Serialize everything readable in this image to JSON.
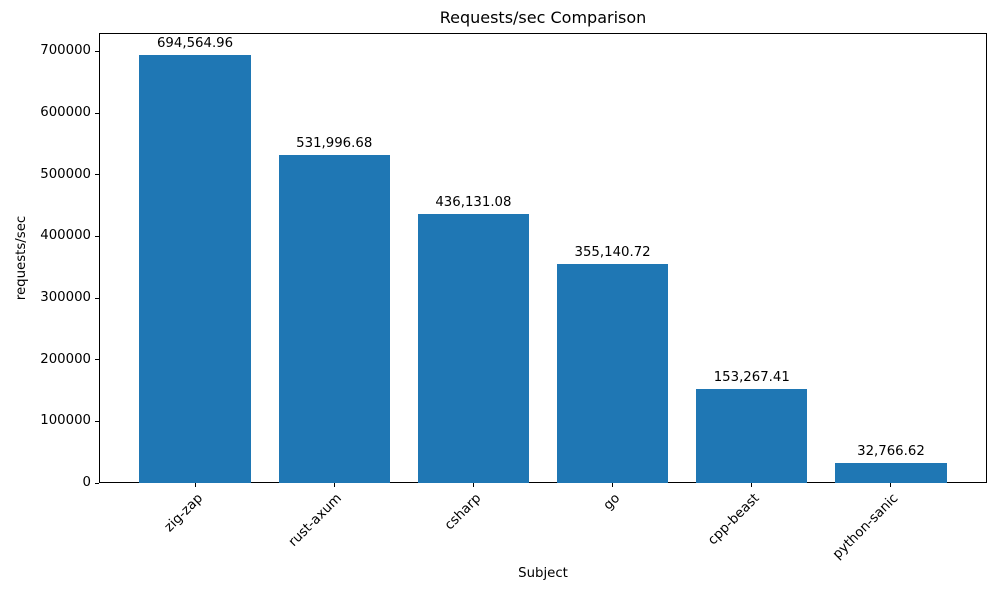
{
  "chart_data": {
    "type": "bar",
    "title": "Requests/sec Comparison",
    "xlabel": "Subject",
    "ylabel": "requests/sec",
    "categories": [
      "zig-zap",
      "rust-axum",
      "csharp",
      "go",
      "cpp-beast",
      "python-sanic"
    ],
    "values": [
      694564.96,
      531996.68,
      436131.08,
      355140.72,
      153267.41,
      32766.62
    ],
    "bar_labels": [
      "694,564.96",
      "531,996.68",
      "436,131.08",
      "355,140.72",
      "153,267.41",
      "32,766.62"
    ],
    "yticks": [
      0,
      100000,
      200000,
      300000,
      400000,
      500000,
      600000,
      700000
    ],
    "ytick_labels": [
      "0",
      "100000",
      "200000",
      "300000",
      "400000",
      "500000",
      "600000",
      "700000"
    ],
    "ylim": [
      0,
      730000
    ],
    "xtick_rotation_deg": 45,
    "grid": false,
    "legend": null,
    "bar_color": "#1f77b4",
    "text_color": "#000000",
    "axis_color": "#000000",
    "background_color": "#ffffff"
  }
}
